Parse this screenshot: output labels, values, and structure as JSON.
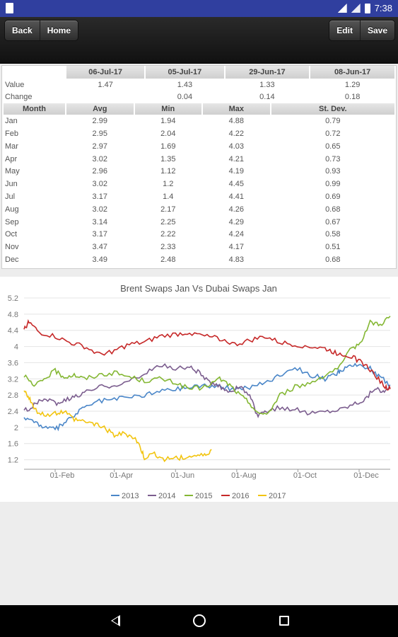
{
  "status": {
    "time": "7:38"
  },
  "toolbar": {
    "back_label": "Back",
    "home_label": "Home",
    "edit_label": "Edit",
    "save_label": "Save"
  },
  "summary": {
    "dates": [
      "06-Jul-17",
      "05-Jul-17",
      "29-Jun-17",
      "08-Jun-17"
    ],
    "value_label": "Value",
    "values": [
      "1.47",
      "1.43",
      "1.33",
      "1.29"
    ],
    "change_label": "Change",
    "changes": [
      "",
      "0.04",
      "0.14",
      "0.18"
    ]
  },
  "stats": {
    "headers": [
      "Month",
      "Avg",
      "Min",
      "Max",
      "St. Dev."
    ],
    "rows": [
      [
        "Jan",
        "2.99",
        "1.94",
        "4.88",
        "0.79"
      ],
      [
        "Feb",
        "2.95",
        "2.04",
        "4.22",
        "0.72"
      ],
      [
        "Mar",
        "2.97",
        "1.69",
        "4.03",
        "0.65"
      ],
      [
        "Apr",
        "3.02",
        "1.35",
        "4.21",
        "0.73"
      ],
      [
        "May",
        "2.96",
        "1.12",
        "4.19",
        "0.93"
      ],
      [
        "Jun",
        "3.02",
        "1.2",
        "4.45",
        "0.99"
      ],
      [
        "Jul",
        "3.17",
        "1.4",
        "4.41",
        "0.69"
      ],
      [
        "Aug",
        "3.02",
        "2.17",
        "4.26",
        "0.68"
      ],
      [
        "Sep",
        "3.14",
        "2.25",
        "4.29",
        "0.67"
      ],
      [
        "Oct",
        "3.17",
        "2.22",
        "4.24",
        "0.58"
      ],
      [
        "Nov",
        "3.47",
        "2.33",
        "4.17",
        "0.51"
      ],
      [
        "Dec",
        "3.49",
        "2.48",
        "4.83",
        "0.68"
      ]
    ]
  },
  "chart_data": {
    "type": "line",
    "title": "Brent Swaps Jan Vs Dubai Swaps Jan",
    "xlabel": "",
    "ylabel": "",
    "ylim": [
      1.0,
      5.2
    ],
    "yticks": [
      "5.2",
      "4.8",
      "4.4",
      "4",
      "3.6",
      "3.2",
      "2.8",
      "2.4",
      "2",
      "1.6",
      "1.2"
    ],
    "xticks": [
      "01-Feb",
      "01-Apr",
      "01-Jun",
      "01-Aug",
      "01-Oct",
      "01-Dec"
    ],
    "xtick_days": [
      31,
      90,
      151,
      212,
      273,
      334
    ],
    "xlim_days": [
      0,
      365
    ],
    "grid": true,
    "legend_position": "bottom",
    "series": [
      {
        "name": "2013",
        "color": "#4a86c8",
        "x": [
          0,
          10,
          20,
          31,
          40,
          50,
          60,
          75,
          90,
          105,
          120,
          135,
          151,
          165,
          180,
          195,
          210,
          225,
          240,
          255,
          270,
          285,
          300,
          310,
          315,
          325,
          335,
          345,
          355,
          365
        ],
        "y": [
          2.25,
          2.15,
          2.0,
          1.95,
          2.1,
          2.3,
          2.5,
          2.65,
          2.7,
          2.75,
          2.8,
          2.9,
          2.95,
          3.0,
          3.05,
          3.0,
          2.95,
          3.0,
          3.1,
          3.3,
          3.5,
          3.3,
          3.2,
          3.3,
          3.4,
          3.5,
          3.55,
          3.45,
          3.25,
          3.05
        ]
      },
      {
        "name": "2014",
        "color": "#7b5d8e",
        "x": [
          0,
          10,
          20,
          31,
          40,
          50,
          60,
          75,
          90,
          105,
          120,
          135,
          151,
          165,
          175,
          185,
          195,
          205,
          215,
          225,
          232,
          240,
          255,
          270,
          285,
          300,
          315,
          330,
          340,
          350,
          358,
          365
        ],
        "y": [
          2.4,
          2.55,
          2.7,
          2.6,
          2.65,
          2.75,
          2.85,
          3.0,
          3.05,
          3.15,
          3.3,
          3.55,
          3.45,
          3.5,
          3.35,
          3.1,
          3.0,
          2.9,
          3.0,
          2.8,
          2.3,
          2.35,
          2.5,
          2.45,
          2.35,
          2.4,
          2.45,
          2.6,
          2.7,
          3.0,
          2.85,
          3.0
        ]
      },
      {
        "name": "2015",
        "color": "#84b733",
        "x": [
          0,
          10,
          20,
          31,
          40,
          50,
          60,
          75,
          90,
          105,
          120,
          135,
          151,
          165,
          180,
          195,
          205,
          215,
          225,
          235,
          245,
          255,
          270,
          285,
          300,
          315,
          325,
          335,
          345,
          355,
          365
        ],
        "y": [
          3.3,
          3.0,
          3.2,
          3.4,
          3.25,
          3.3,
          3.2,
          3.3,
          3.35,
          3.25,
          3.15,
          3.2,
          3.1,
          2.95,
          3.0,
          3.2,
          3.05,
          2.8,
          2.6,
          2.3,
          2.4,
          2.8,
          3.0,
          3.1,
          3.3,
          3.5,
          3.9,
          4.1,
          4.6,
          4.55,
          4.75
        ]
      },
      {
        "name": "2016",
        "color": "#c62828",
        "x": [
          0,
          5,
          15,
          31,
          45,
          60,
          75,
          90,
          105,
          120,
          135,
          151,
          165,
          180,
          195,
          210,
          225,
          240,
          255,
          270,
          285,
          300,
          310,
          320,
          330,
          340,
          350,
          360,
          365
        ],
        "y": [
          4.45,
          4.6,
          4.35,
          4.25,
          4.1,
          4.0,
          3.8,
          3.9,
          4.05,
          4.1,
          4.25,
          4.3,
          4.35,
          4.25,
          4.2,
          4.05,
          4.15,
          4.25,
          4.1,
          4.05,
          4.0,
          3.95,
          3.85,
          3.8,
          3.7,
          3.55,
          3.3,
          3.0,
          2.95
        ]
      },
      {
        "name": "2017",
        "color": "#f2c40f",
        "x": [
          0,
          5,
          10,
          20,
          31,
          40,
          50,
          60,
          70,
          80,
          90,
          100,
          110,
          115,
          120,
          130,
          140,
          150,
          160,
          170,
          180,
          187
        ],
        "y": [
          2.9,
          2.75,
          2.45,
          2.3,
          2.35,
          2.4,
          2.2,
          2.15,
          2.1,
          2.0,
          1.8,
          1.85,
          1.75,
          1.55,
          1.25,
          1.35,
          1.2,
          1.25,
          1.25,
          1.3,
          1.3,
          1.45
        ]
      }
    ]
  }
}
